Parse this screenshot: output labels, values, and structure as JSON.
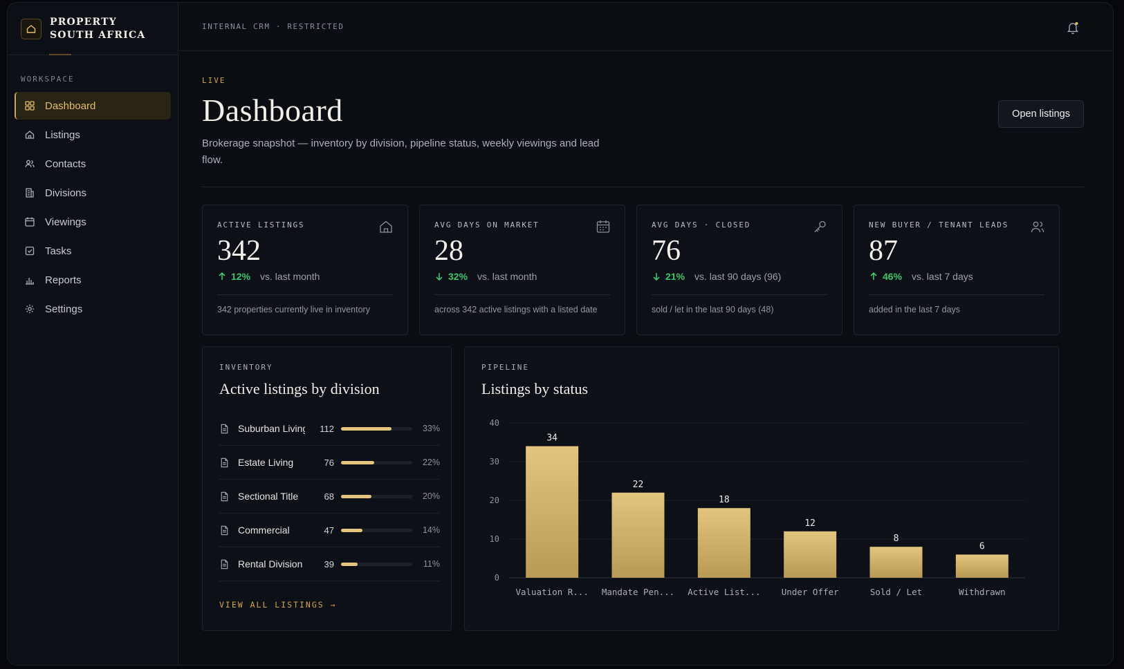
{
  "brand": {
    "line1": "PROPERTY",
    "line2": "SOUTH AFRICA"
  },
  "sidebar": {
    "section_label": "WORKSPACE",
    "items": [
      {
        "label": "Dashboard",
        "icon": "grid-icon",
        "active": true
      },
      {
        "label": "Listings",
        "icon": "home-icon"
      },
      {
        "label": "Contacts",
        "icon": "users-icon"
      },
      {
        "label": "Divisions",
        "icon": "building-icon"
      },
      {
        "label": "Viewings",
        "icon": "calendar-icon"
      },
      {
        "label": "Tasks",
        "icon": "checkbox-icon"
      },
      {
        "label": "Reports",
        "icon": "bar-chart-icon"
      },
      {
        "label": "Settings",
        "icon": "gear-icon"
      }
    ]
  },
  "topbar": {
    "breadcrumb": "INTERNAL CRM · RESTRICTED"
  },
  "header": {
    "eyebrow": "LIVE",
    "title": "Dashboard",
    "subtitle": "Brokerage snapshot — inventory by division, pipeline status, weekly viewings and lead flow.",
    "open_button": "Open listings"
  },
  "kpis": [
    {
      "label": "ACTIVE LISTINGS",
      "value": "342",
      "direction": "up",
      "pct": "12%",
      "comparison": "vs. last month",
      "footnote": "342 properties currently live in inventory",
      "icon": "home-icon"
    },
    {
      "label": "AVG DAYS ON MARKET",
      "value": "28",
      "direction": "down",
      "pct": "32%",
      "comparison": "vs. last month",
      "footnote": "across 342 active listings with a listed date",
      "icon": "calendar-icon"
    },
    {
      "label": "AVG DAYS · CLOSED",
      "value": "76",
      "direction": "down",
      "pct": "21%",
      "comparison": "vs. last 90 days (96)",
      "footnote": "sold / let in the last 90 days (48)",
      "icon": "key-icon"
    },
    {
      "label": "NEW BUYER / TENANT LEADS",
      "value": "87",
      "direction": "up",
      "pct": "46%",
      "comparison": "vs. last 7 days",
      "footnote": "added in the last 7 days",
      "icon": "users-icon"
    }
  ],
  "inventory": {
    "eyebrow": "INVENTORY",
    "title": "Active listings by division",
    "rows": [
      {
        "name": "Suburban Living",
        "count": "112",
        "pct": "33%",
        "share": 0.33
      },
      {
        "name": "Estate Living",
        "count": "76",
        "pct": "22%",
        "share": 0.22
      },
      {
        "name": "Sectional Title",
        "count": "68",
        "pct": "20%",
        "share": 0.2
      },
      {
        "name": "Commercial",
        "count": "47",
        "pct": "14%",
        "share": 0.14
      },
      {
        "name": "Rental Division",
        "count": "39",
        "pct": "11%",
        "share": 0.11
      }
    ],
    "view_all": "VIEW ALL LISTINGS →"
  },
  "pipeline": {
    "eyebrow": "PIPELINE",
    "title": "Listings by status"
  },
  "chart_data": {
    "type": "bar",
    "title": "Listings by status",
    "categories": [
      "Valuation R...",
      "Mandate Pen...",
      "Active List...",
      "Under Offer",
      "Sold / Let",
      "Withdrawn"
    ],
    "values": [
      34,
      22,
      18,
      12,
      8,
      6
    ],
    "ylim": [
      0,
      40
    ],
    "yticks": [
      0,
      10,
      20,
      30,
      40
    ],
    "grid": true,
    "bar_color": "#d9b96d",
    "xlabel": "",
    "ylabel": ""
  },
  "colors": {
    "accent": "#d2a54b",
    "positive": "#41c46c",
    "background": "#0a0d12"
  }
}
